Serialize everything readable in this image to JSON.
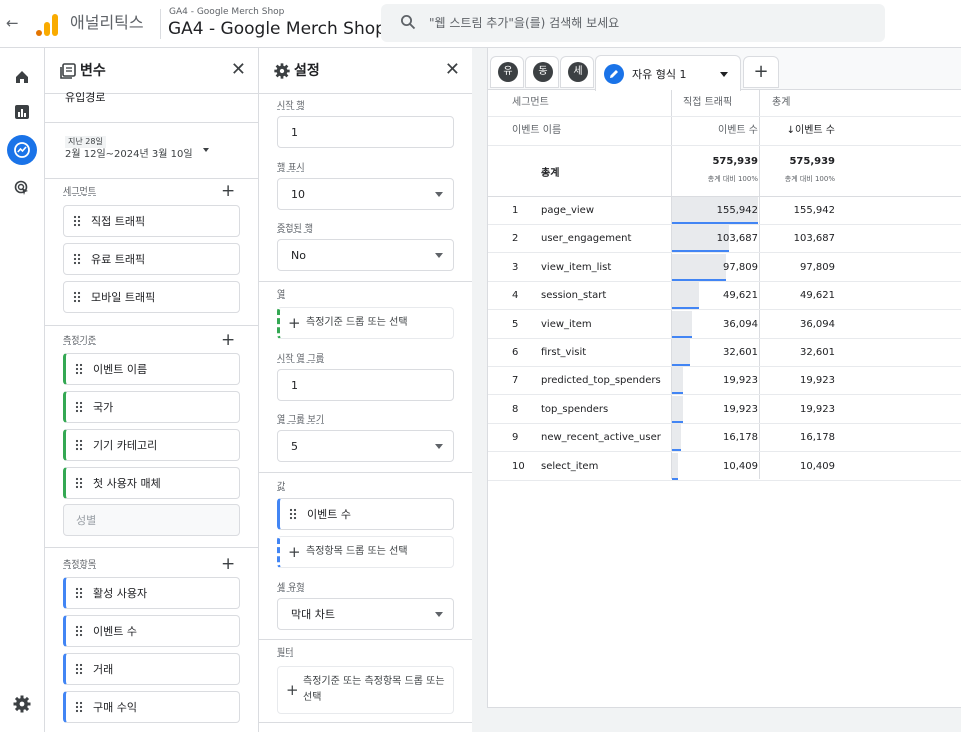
{
  "topbar": {
    "back_icon": "arrow-left-icon",
    "app_name": "애널리틱스",
    "account_path": "GA4 - Google Merch Shop",
    "property_name": "GA4 - Google Merch Shop",
    "search_placeholder": "\"웹 스트림 추가\"을(를) 검색해 보세요",
    "logo_colors": [
      "#f9ab00",
      "#e37400",
      "#e37400"
    ]
  },
  "rail": {
    "items": [
      "home-icon",
      "reports-icon",
      "explore-icon",
      "advertising-icon"
    ],
    "settings": "gear-icon",
    "active_color": "#1a73e8"
  },
  "variables": {
    "title": "변수",
    "exploration_name": "유입경로",
    "date": {
      "range_label": "지난 28일",
      "range_value": "2월 12일~2024년 3월 10일"
    },
    "segments_label": "세그먼트",
    "segments": [
      "직접 트래픽",
      "유료 트래픽",
      "모바일 트래픽"
    ],
    "dimensions_label": "측정기준",
    "dimensions": [
      "이벤트 이름",
      "국가",
      "기기 카테고리",
      "첫 사용자 매체"
    ],
    "dimension_disabled": "성별",
    "metrics_label": "측정항목",
    "metrics": [
      "활성 사용자",
      "이벤트 수",
      "거래",
      "구매 수익"
    ]
  },
  "settings": {
    "title": "설정",
    "start_row_label": "시작 행",
    "start_row_value": "1",
    "rows_label": "행 표시",
    "rows_value": "10",
    "nested_label": "중첩된 행",
    "nested_value": "No",
    "columns_label": "열",
    "columns_drop": "측정기준 드롭 또는 선택",
    "start_col_label": "시작 열 그룹",
    "start_col_value": "1",
    "col_groups_label": "열 그룹 보기",
    "col_groups_value": "5",
    "values_label": "값",
    "value_item": "이벤트 수",
    "values_drop": "측정항목 드롭 또는 선택",
    "cell_type_label": "셀 유형",
    "cell_type_value": "막대 차트",
    "filters_label": "필터",
    "filters_drop": "측정기준 또는 측정항목 드롭 또는 선택"
  },
  "report": {
    "tabs": [
      "유",
      "동",
      "세"
    ],
    "active_tab": "자유 형식 1",
    "add_tab": "+",
    "header": {
      "segment_col": "세그먼트",
      "direct_col": "직접 트래픽",
      "total_col": "총계",
      "dim_col": "이벤트 이름",
      "metric_col": "이벤트 수",
      "metric_col_sorted": "↓이벤트 수"
    },
    "totals": {
      "label": "총계",
      "direct": "575,939",
      "direct_sub": "총계 대비 100%",
      "total": "575,939",
      "total_sub": "총계 대비 100%"
    },
    "rows": [
      {
        "n": "1",
        "name": "page_view",
        "direct": "155,942",
        "total": "155,942",
        "share": 1.0
      },
      {
        "n": "2",
        "name": "user_engagement",
        "direct": "103,687",
        "total": "103,687",
        "share": 0.665
      },
      {
        "n": "3",
        "name": "view_item_list",
        "direct": "97,809",
        "total": "97,809",
        "share": 0.627
      },
      {
        "n": "4",
        "name": "session_start",
        "direct": "49,621",
        "total": "49,621",
        "share": 0.318
      },
      {
        "n": "5",
        "name": "view_item",
        "direct": "36,094",
        "total": "36,094",
        "share": 0.231
      },
      {
        "n": "6",
        "name": "first_visit",
        "direct": "32,601",
        "total": "32,601",
        "share": 0.209
      },
      {
        "n": "7",
        "name": "predicted_top_spenders",
        "direct": "19,923",
        "total": "19,923",
        "share": 0.128
      },
      {
        "n": "8",
        "name": "top_spenders",
        "direct": "19,923",
        "total": "19,923",
        "share": 0.128
      },
      {
        "n": "9",
        "name": "new_recent_active_user",
        "direct": "16,178",
        "total": "16,178",
        "share": 0.104
      },
      {
        "n": "10",
        "name": "select_item",
        "direct": "10,409",
        "total": "10,409",
        "share": 0.067
      }
    ]
  }
}
